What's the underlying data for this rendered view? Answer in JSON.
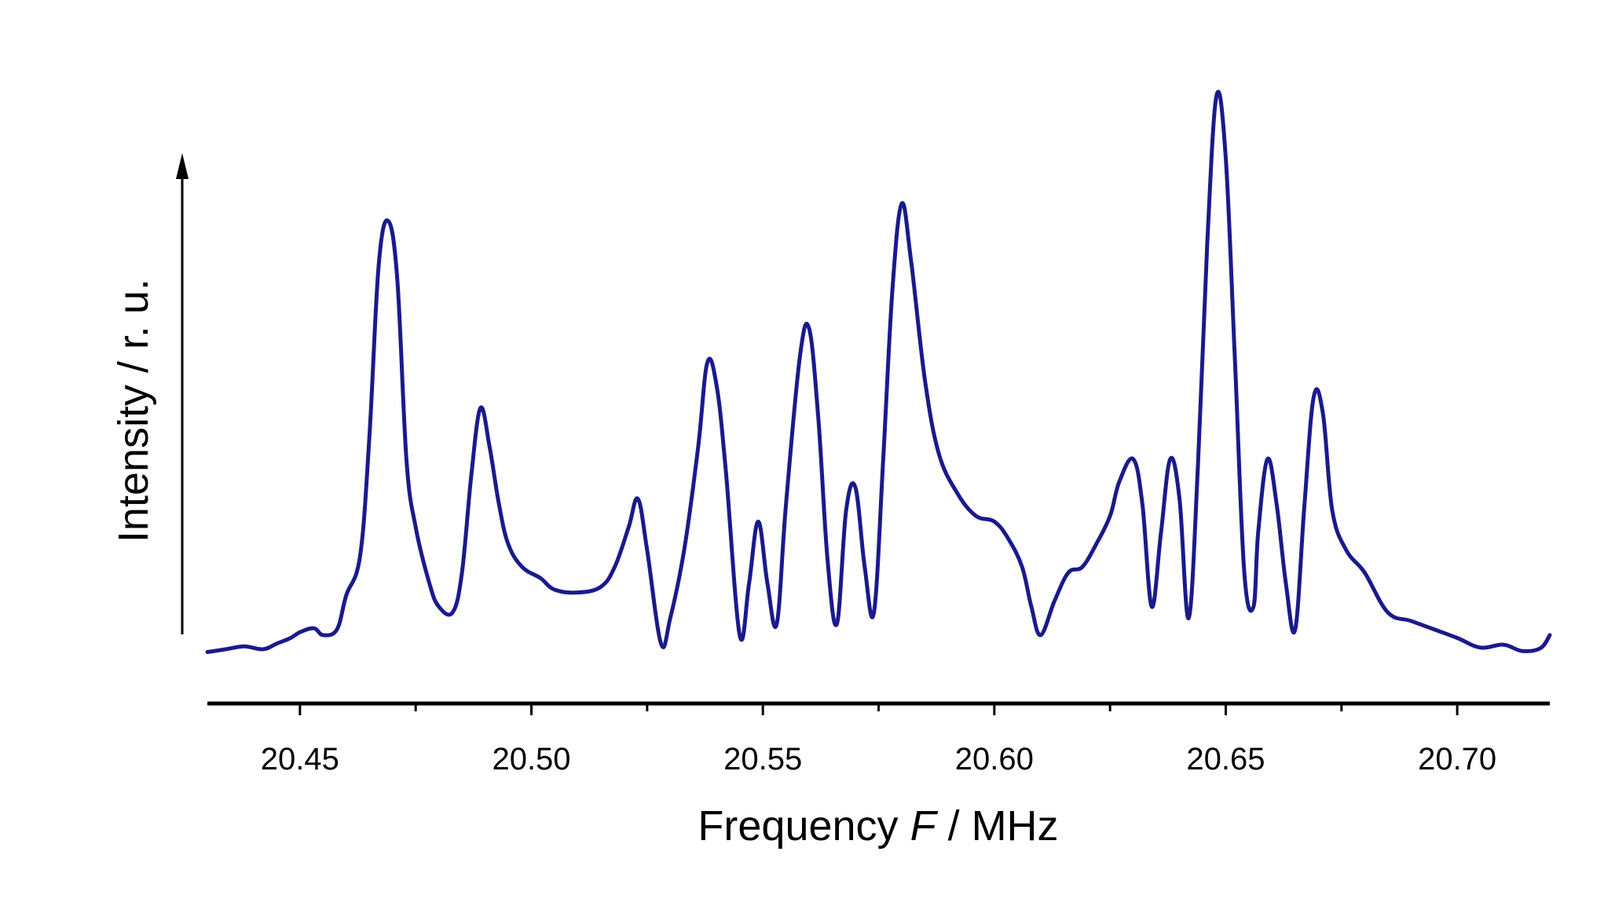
{
  "chart_data": {
    "type": "line",
    "title": "",
    "xlabel_prefix": "Frequency ",
    "xlabel_var": "F",
    "xlabel_suffix": " / MHz",
    "ylabel": "Intensity / r. u.",
    "xlim": [
      20.43,
      20.72
    ],
    "ylim": [
      0,
      1
    ],
    "x_ticks": [
      "20.45",
      "20.50",
      "20.55",
      "20.60",
      "20.65",
      "20.70"
    ],
    "x_tick_values": [
      20.45,
      20.5,
      20.55,
      20.6,
      20.65,
      20.7
    ],
    "x_minor_ticks": [
      20.475,
      20.525,
      20.575,
      20.625,
      20.675
    ],
    "y_axis_arrow": true,
    "grid": false,
    "line_color": "#1a1a8c",
    "series": [
      {
        "x": [
          20.43,
          20.434,
          20.438,
          20.442,
          20.445,
          20.448,
          20.45,
          20.453,
          20.455,
          20.458,
          20.46,
          20.463,
          20.465,
          20.467,
          20.469,
          20.471,
          20.473,
          20.475,
          20.478,
          20.48,
          20.483,
          20.485,
          20.487,
          20.489,
          20.491,
          20.493,
          20.495,
          20.498,
          20.502,
          20.505,
          20.51,
          20.515,
          20.518,
          20.521,
          20.523,
          20.525,
          20.528,
          20.53,
          20.533,
          20.536,
          20.538,
          20.54,
          20.542,
          20.545,
          20.547,
          20.549,
          20.551,
          20.553,
          20.555,
          20.558,
          20.56,
          20.562,
          20.564,
          20.566,
          20.568,
          20.57,
          20.572,
          20.574,
          20.576,
          20.578,
          20.58,
          20.582,
          20.585,
          20.588,
          20.592,
          20.596,
          20.6,
          20.603,
          20.606,
          20.608,
          20.61,
          20.613,
          20.616,
          20.619,
          20.622,
          20.625,
          20.627,
          20.63,
          20.632,
          20.634,
          20.636,
          20.638,
          20.64,
          20.642,
          20.644,
          20.646,
          20.648,
          20.65,
          20.652,
          20.654,
          20.656,
          20.657,
          20.659,
          20.661,
          20.663,
          20.665,
          20.667,
          20.669,
          20.671,
          20.673,
          20.676,
          20.68,
          20.685,
          20.69,
          20.695,
          20.7,
          20.705,
          20.71,
          20.714,
          20.718,
          20.72
        ],
        "y": [
          0.02,
          0.025,
          0.03,
          0.025,
          0.035,
          0.045,
          0.055,
          0.062,
          0.05,
          0.06,
          0.12,
          0.19,
          0.4,
          0.7,
          0.78,
          0.68,
          0.36,
          0.24,
          0.14,
          0.1,
          0.09,
          0.16,
          0.33,
          0.45,
          0.38,
          0.28,
          0.21,
          0.17,
          0.15,
          0.13,
          0.125,
          0.135,
          0.17,
          0.24,
          0.29,
          0.2,
          0.035,
          0.08,
          0.2,
          0.38,
          0.53,
          0.49,
          0.34,
          0.05,
          0.14,
          0.25,
          0.14,
          0.07,
          0.28,
          0.54,
          0.59,
          0.43,
          0.18,
          0.07,
          0.27,
          0.31,
          0.17,
          0.09,
          0.36,
          0.66,
          0.81,
          0.71,
          0.5,
          0.37,
          0.3,
          0.26,
          0.25,
          0.22,
          0.17,
          0.1,
          0.05,
          0.11,
          0.16,
          0.17,
          0.21,
          0.26,
          0.32,
          0.36,
          0.28,
          0.1,
          0.23,
          0.36,
          0.29,
          0.08,
          0.35,
          0.74,
          1.0,
          0.89,
          0.53,
          0.16,
          0.1,
          0.23,
          0.36,
          0.28,
          0.14,
          0.06,
          0.28,
          0.47,
          0.44,
          0.27,
          0.2,
          0.16,
          0.09,
          0.075,
          0.06,
          0.045,
          0.028,
          0.033,
          0.022,
          0.027,
          0.05
        ]
      }
    ]
  }
}
